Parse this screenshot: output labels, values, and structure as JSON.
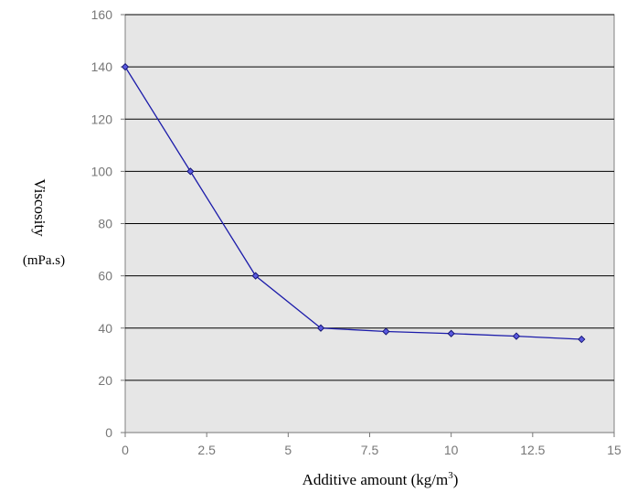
{
  "chart_data": {
    "type": "line",
    "title": "",
    "xlabel_main": "Additive amount (kg/m",
    "xlabel_sup": "3",
    "xlabel_tail": ")",
    "ylabel": "Viscosity",
    "ylabel_unit": "(mPa.s)",
    "xlim": [
      0,
      15
    ],
    "ylim": [
      0,
      160
    ],
    "xticks": [
      "0",
      "2.5",
      "5",
      "7.5",
      "10",
      "12.5",
      "15"
    ],
    "yticks": [
      "0",
      "20",
      "40",
      "60",
      "80",
      "100",
      "120",
      "140",
      "160"
    ],
    "grid": "horizontal",
    "legend": "none",
    "series": [
      {
        "x": [
          0,
          2,
          4,
          6,
          8,
          10,
          12,
          14
        ],
        "y": [
          140,
          100,
          60,
          40,
          38.7,
          37.9,
          36.9,
          35.7
        ]
      }
    ],
    "colors": {
      "plot_background": "#e6e6e6",
      "line": "#1c1caa",
      "marker_fill": "#5a5ae0",
      "grid": "#000000"
    }
  }
}
